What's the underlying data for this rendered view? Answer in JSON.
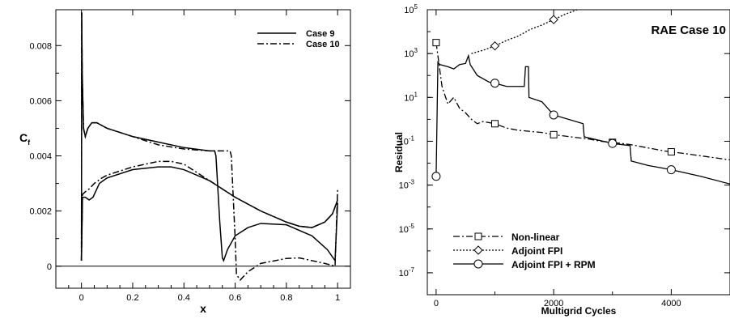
{
  "chart_data": [
    {
      "type": "line",
      "xlabel": "x",
      "ylabel": "C",
      "ylabel_subscript": "f",
      "xlim": [
        -0.1,
        1.05
      ],
      "ylim": [
        -0.0008,
        0.0093
      ],
      "x_ticks": [
        0,
        0.2,
        0.4,
        0.6,
        0.8,
        1
      ],
      "x_tick_labels": [
        "0",
        "0.2",
        "0.4",
        "0.6",
        "0.8",
        "1"
      ],
      "y_ticks": [
        0,
        0.002,
        0.004,
        0.006,
        0.008
      ],
      "y_tick_labels": [
        "0",
        "0.002",
        "0.004",
        "0.006",
        "0.008"
      ],
      "legend_position": "top-right",
      "series": [
        {
          "name": "Case 9",
          "style": "solid",
          "segments": [
            [
              [
                0,
                0.0002
              ],
              [
                0.001,
                0.0092
              ],
              [
                0.003,
                0.007
              ],
              [
                0.008,
                0.005
              ],
              [
                0.015,
                0.0047
              ],
              [
                0.025,
                0.005
              ],
              [
                0.04,
                0.0052
              ],
              [
                0.06,
                0.0052
              ],
              [
                0.1,
                0.005
              ],
              [
                0.2,
                0.0047
              ],
              [
                0.3,
                0.0045
              ],
              [
                0.4,
                0.0043
              ],
              [
                0.5,
                0.00418
              ],
              [
                0.52,
                0.00418
              ],
              [
                0.525,
                0.004
              ],
              [
                0.54,
                0.0016
              ],
              [
                0.55,
                0.0003
              ],
              [
                0.555,
                0.0002
              ],
              [
                0.57,
                0.0006
              ],
              [
                0.6,
                0.0011
              ],
              [
                0.65,
                0.0014
              ],
              [
                0.7,
                0.00155
              ],
              [
                0.8,
                0.0015
              ],
              [
                0.9,
                0.0011
              ],
              [
                0.96,
                0.0006
              ],
              [
                0.99,
                0.0002
              ],
              [
                1.0,
                0.0023
              ]
            ],
            [
              [
                0,
                0.0002
              ],
              [
                0.004,
                0.0025
              ],
              [
                0.015,
                0.0025
              ],
              [
                0.03,
                0.0024
              ],
              [
                0.045,
                0.0025
              ],
              [
                0.07,
                0.003
              ],
              [
                0.1,
                0.0032
              ],
              [
                0.2,
                0.0035
              ],
              [
                0.3,
                0.0036
              ],
              [
                0.35,
                0.0036
              ],
              [
                0.4,
                0.0035
              ],
              [
                0.5,
                0.0031
              ],
              [
                0.6,
                0.0025
              ],
              [
                0.7,
                0.002
              ],
              [
                0.8,
                0.0016
              ],
              [
                0.85,
                0.00145
              ],
              [
                0.9,
                0.0014
              ],
              [
                0.95,
                0.0016
              ],
              [
                0.98,
                0.0019
              ],
              [
                1.0,
                0.0024
              ]
            ]
          ]
        },
        {
          "name": "Case 10",
          "style": "dashdot",
          "segments": [
            [
              [
                0,
                0.0002
              ],
              [
                0.001,
                0.0092
              ],
              [
                0.003,
                0.007
              ],
              [
                0.008,
                0.005
              ],
              [
                0.015,
                0.0047
              ],
              [
                0.025,
                0.005
              ],
              [
                0.04,
                0.0052
              ],
              [
                0.06,
                0.0052
              ],
              [
                0.1,
                0.005
              ],
              [
                0.2,
                0.0047
              ],
              [
                0.3,
                0.0044
              ],
              [
                0.4,
                0.00425
              ],
              [
                0.5,
                0.00418
              ],
              [
                0.58,
                0.00418
              ],
              [
                0.585,
                0.004
              ],
              [
                0.6,
                0.001
              ],
              [
                0.605,
                -0.0003
              ],
              [
                0.62,
                -0.0005
              ],
              [
                0.65,
                -0.0002
              ],
              [
                0.7,
                0.0001
              ],
              [
                0.8,
                0.00028
              ],
              [
                0.85,
                0.0003
              ],
              [
                0.9,
                0.0002
              ],
              [
                0.95,
                0.0001
              ],
              [
                0.99,
                0.0
              ],
              [
                1.0,
                0.0028
              ]
            ],
            [
              [
                0,
                0.0002
              ],
              [
                0.004,
                0.0026
              ],
              [
                0.015,
                0.0027
              ],
              [
                0.03,
                0.0028
              ],
              [
                0.05,
                0.003
              ],
              [
                0.08,
                0.0032
              ],
              [
                0.1,
                0.0033
              ],
              [
                0.2,
                0.0036
              ],
              [
                0.3,
                0.0038
              ],
              [
                0.35,
                0.0038
              ],
              [
                0.4,
                0.0037
              ],
              [
                0.5,
                0.0031
              ],
              [
                0.6,
                0.0025
              ],
              [
                0.7,
                0.002
              ],
              [
                0.8,
                0.0016
              ],
              [
                0.85,
                0.00145
              ],
              [
                0.9,
                0.0014
              ],
              [
                0.95,
                0.0016
              ],
              [
                0.98,
                0.0019
              ],
              [
                1.0,
                0.0024
              ]
            ]
          ]
        }
      ]
    },
    {
      "type": "line",
      "title": "RAE Case 10",
      "xlabel": "Multigrid Cycles",
      "ylabel": "Residual",
      "log_y": true,
      "xlim": [
        -150,
        5000
      ],
      "ylim_exp": [
        -8,
        5
      ],
      "x_ticks": [
        0,
        2000,
        4000
      ],
      "x_tick_labels": [
        "0",
        "2000",
        "4000"
      ],
      "y_tick_exponents": [
        -7,
        -5,
        -3,
        -1,
        1,
        3,
        5
      ],
      "legend_position": "bottom-left",
      "series": [
        {
          "name": "Non-linear",
          "style": "dashdot",
          "marker": "square",
          "points": [
            [
              0,
              3.5
            ],
            [
              100,
              1.5
            ],
            [
              200,
              0.7
            ],
            [
              300,
              1.0
            ],
            [
              400,
              0.5
            ],
            [
              500,
              0.3
            ],
            [
              600,
              0.0
            ],
            [
              700,
              -0.2
            ],
            [
              800,
              -0.1
            ],
            [
              1000,
              -0.2
            ],
            [
              1200,
              -0.4
            ],
            [
              1400,
              -0.5
            ],
            [
              1600,
              -0.55
            ],
            [
              1800,
              -0.6
            ],
            [
              2000,
              -0.7
            ],
            [
              2300,
              -0.8
            ],
            [
              2600,
              -0.9
            ],
            [
              2800,
              -1.0
            ],
            [
              3000,
              -1.05
            ],
            [
              3300,
              -1.15
            ],
            [
              3600,
              -1.3
            ],
            [
              3900,
              -1.45
            ],
            [
              4200,
              -1.55
            ],
            [
              4600,
              -1.7
            ],
            [
              5000,
              -1.85
            ]
          ],
          "marker_x": [
            0,
            1000,
            2000,
            3000,
            4000
          ]
        },
        {
          "name": "Adjoint FPI",
          "style": "dotted",
          "marker": "diamond",
          "points": [
            [
              600,
              3.0
            ],
            [
              800,
              3.15
            ],
            [
              1000,
              3.35
            ],
            [
              1200,
              3.6
            ],
            [
              1400,
              3.8
            ],
            [
              1600,
              4.1
            ],
            [
              1800,
              4.3
            ],
            [
              2000,
              4.55
            ],
            [
              2200,
              4.8
            ],
            [
              2400,
              5.0
            ]
          ],
          "marker_x": [
            1000,
            2000
          ]
        },
        {
          "name": "Adjoint FPI + RPM",
          "style": "solid",
          "marker": "circle",
          "points": [
            [
              0,
              -2.6
            ],
            [
              30,
              2.6
            ],
            [
              60,
              2.5
            ],
            [
              200,
              2.4
            ],
            [
              300,
              2.3
            ],
            [
              400,
              2.5
            ],
            [
              500,
              2.55
            ],
            [
              550,
              2.9
            ],
            [
              580,
              2.5
            ],
            [
              700,
              2.0
            ],
            [
              900,
              1.7
            ],
            [
              1000,
              1.65
            ],
            [
              1200,
              1.5
            ],
            [
              1500,
              1.5
            ],
            [
              1520,
              2.4
            ],
            [
              1570,
              2.4
            ],
            [
              1580,
              1.0
            ],
            [
              1800,
              0.8
            ],
            [
              2000,
              0.2
            ],
            [
              2500,
              -0.2
            ],
            [
              2520,
              -0.8
            ],
            [
              3000,
              -1.1
            ],
            [
              3300,
              -1.2
            ],
            [
              3320,
              -1.9
            ],
            [
              3600,
              -2.1
            ],
            [
              4000,
              -2.3
            ],
            [
              4500,
              -2.6
            ],
            [
              5000,
              -2.95
            ]
          ],
          "marker_x": [
            0,
            1000,
            2000,
            3000,
            4000
          ]
        }
      ]
    }
  ]
}
